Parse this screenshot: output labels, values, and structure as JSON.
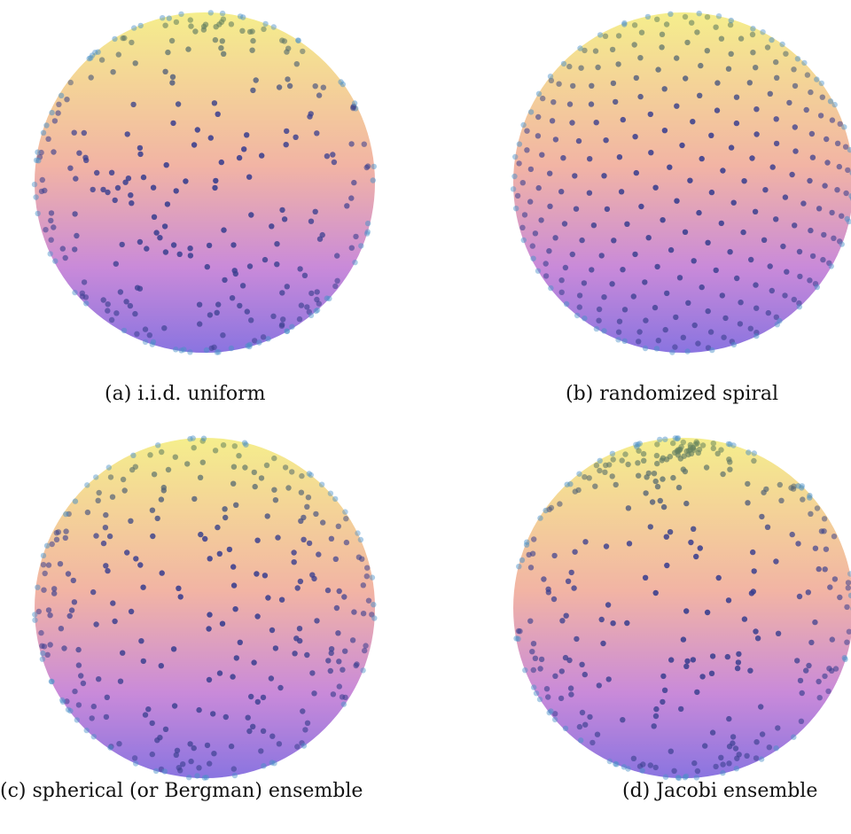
{
  "figure": {
    "panels": [
      {
        "id": "a",
        "caption": "(a) i.i.d. uniform",
        "distribution": "iid"
      },
      {
        "id": "b",
        "caption": "(b) randomized spiral",
        "distribution": "spiral"
      },
      {
        "id": "c",
        "caption": "(c) spherical (or Bergman) ensemble",
        "distribution": "repulsive"
      },
      {
        "id": "d",
        "caption": "(d) Jacobi ensemble",
        "distribution": "jacobi"
      }
    ],
    "colors": {
      "sphere_top": "#f5ee8c",
      "sphere_mid": "#f2b4a4",
      "sphere_low": "#c98ad9",
      "sphere_bottom": "#8a74e0",
      "point_front": "#3a3f8f",
      "point_edge": "#4a90c8",
      "point_top": "#6b8a5a"
    }
  }
}
